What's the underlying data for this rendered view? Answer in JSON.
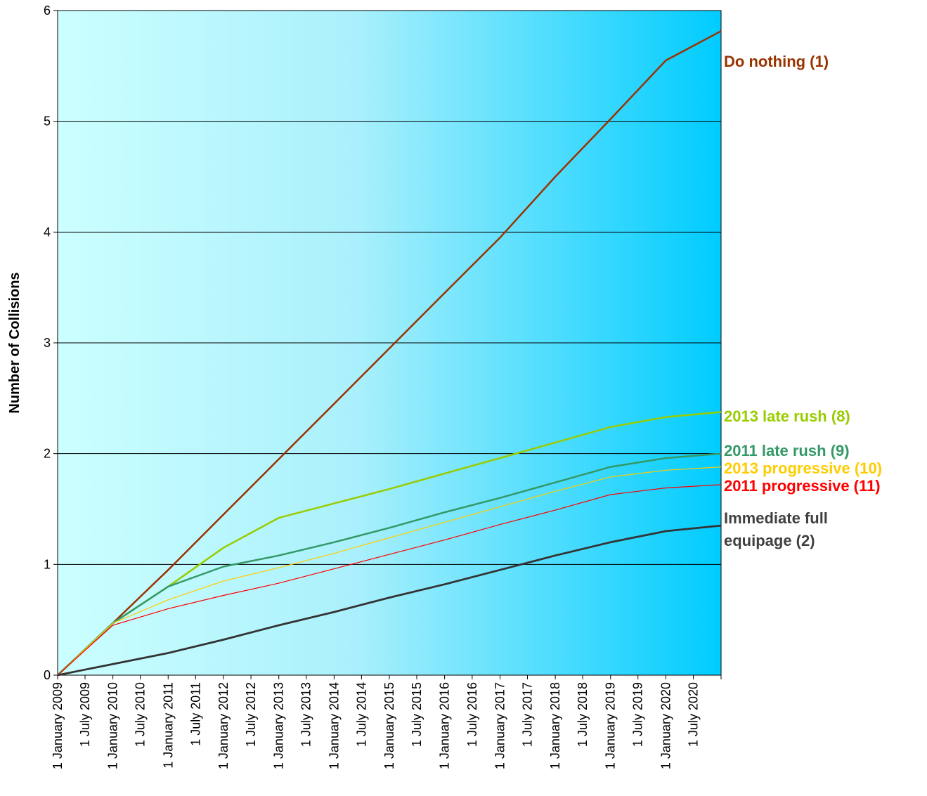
{
  "chart_data": {
    "type": "line",
    "title": "",
    "xlabel": "",
    "ylabel": "Number of Collisions",
    "ylim": [
      0,
      6
    ],
    "yticks": [
      0,
      1,
      2,
      3,
      4,
      5,
      6
    ],
    "grid": true,
    "xticks": [
      "1 January 2009",
      "1 July 2009",
      "1 January 2010",
      "1 July 2010",
      "1 January 2011",
      "1 July 2011",
      "1 January 2012",
      "1 July 2012",
      "1 January 2013",
      "1 July 2013",
      "1 January 2014",
      "1 July 2014",
      "1 January 2015",
      "1 July 2015",
      "1 January 2016",
      "1 July 2016",
      "1 January 2017",
      "1 July 2017",
      "1 January 2018",
      "1 July 2018",
      "1 January 2019",
      "1 July 2019",
      "1 January 2020",
      "1 July 2020"
    ],
    "x_end": "31 December 2020",
    "series": [
      {
        "name": "Do nothing (1)",
        "color": "#993300",
        "points": [
          [
            "1 January 2009",
            0
          ],
          [
            "1 January 2010",
            0.47
          ],
          [
            "1 January 2011",
            0.95
          ],
          [
            "1 January 2012",
            1.45
          ],
          [
            "1 January 2013",
            1.95
          ],
          [
            "1 January 2014",
            2.45
          ],
          [
            "1 January 2015",
            2.95
          ],
          [
            "1 January 2016",
            3.45
          ],
          [
            "1 January 2017",
            3.95
          ],
          [
            "1 January 2018",
            4.5
          ],
          [
            "1 January 2019",
            5.02
          ],
          [
            "1 January 2020",
            5.55
          ]
        ]
      },
      {
        "name": "2013 late rush (8)",
        "color": "#99CC00",
        "points": [
          [
            "1 January 2009",
            0
          ],
          [
            "1 January 2010",
            0.47
          ],
          [
            "1 January 2011",
            0.8
          ],
          [
            "1 January 2012",
            1.15
          ],
          [
            "1 January 2013",
            1.42
          ],
          [
            "1 January 2014",
            1.55
          ],
          [
            "1 January 2015",
            1.68
          ],
          [
            "1 January 2016",
            1.82
          ],
          [
            "1 January 2017",
            1.96
          ],
          [
            "1 January 2018",
            2.1
          ],
          [
            "1 January 2019",
            2.24
          ],
          [
            "1 January 2020",
            2.33
          ]
        ]
      },
      {
        "name": "2011 late rush (9)",
        "color": "#339966",
        "points": [
          [
            "1 January 2009",
            0
          ],
          [
            "1 January 2010",
            0.47
          ],
          [
            "1 January 2011",
            0.8
          ],
          [
            "1 January 2012",
            0.98
          ],
          [
            "1 January 2013",
            1.08
          ],
          [
            "1 January 2014",
            1.2
          ],
          [
            "1 January 2015",
            1.33
          ],
          [
            "1 January 2016",
            1.47
          ],
          [
            "1 January 2017",
            1.6
          ],
          [
            "1 January 2018",
            1.74
          ],
          [
            "1 January 2019",
            1.88
          ],
          [
            "1 January 2020",
            1.96
          ]
        ]
      },
      {
        "name": "2013 progressive (10)",
        "color": "#FFCC00",
        "points": [
          [
            "1 January 2009",
            0
          ],
          [
            "1 January 2010",
            0.47
          ],
          [
            "1 January 2011",
            0.68
          ],
          [
            "1 January 2012",
            0.85
          ],
          [
            "1 January 2013",
            0.97
          ],
          [
            "1 January 2014",
            1.1
          ],
          [
            "1 January 2015",
            1.24
          ],
          [
            "1 January 2016",
            1.38
          ],
          [
            "1 January 2017",
            1.52
          ],
          [
            "1 January 2018",
            1.66
          ],
          [
            "1 January 2019",
            1.79
          ],
          [
            "1 January 2020",
            1.85
          ]
        ]
      },
      {
        "name": "2011 progressive (11)",
        "color": "#FF0000",
        "points": [
          [
            "1 January 2009",
            0
          ],
          [
            "1 January 2010",
            0.45
          ],
          [
            "1 January 2011",
            0.6
          ],
          [
            "1 January 2012",
            0.72
          ],
          [
            "1 January 2013",
            0.83
          ],
          [
            "1 January 2014",
            0.96
          ],
          [
            "1 January 2015",
            1.09
          ],
          [
            "1 January 2016",
            1.22
          ],
          [
            "1 January 2017",
            1.36
          ],
          [
            "1 January 2018",
            1.49
          ],
          [
            "1 January 2019",
            1.63
          ],
          [
            "1 January 2020",
            1.69
          ]
        ]
      },
      {
        "name": "Immediate full equipage (2)",
        "label_lines": [
          "Immediate full",
          "equipage (2)"
        ],
        "color": "#333333",
        "points": [
          [
            "1 January 2009",
            0
          ],
          [
            "1 January 2010",
            0.1
          ],
          [
            "1 January 2011",
            0.2
          ],
          [
            "1 January 2012",
            0.32
          ],
          [
            "1 January 2013",
            0.45
          ],
          [
            "1 January 2014",
            0.57
          ],
          [
            "1 January 2015",
            0.7
          ],
          [
            "1 January 2016",
            0.82
          ],
          [
            "1 January 2017",
            0.95
          ],
          [
            "1 January 2018",
            1.08
          ],
          [
            "1 January 2019",
            1.2
          ],
          [
            "1 January 2020",
            1.3
          ]
        ]
      }
    ]
  }
}
